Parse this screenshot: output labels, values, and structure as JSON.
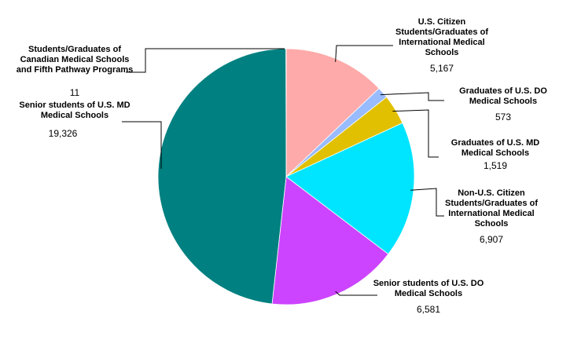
{
  "chart_data": {
    "type": "pie",
    "categories": [
      "U.S. Citizen Students/Graduates of International Medical Schools",
      "Graduates of U.S. DO Medical Schools",
      "Graduates of U.S. MD Medical Schools",
      "Non-U.S. Citizen Students/Graduates of International Medical Schools",
      "Senior students of U.S. DO Medical Schools",
      "Senior students of U.S. MD Medical Schools",
      "Students/Graduates of Canadian Medical Schools and Fifth Pathway Programs"
    ],
    "values": [
      5167,
      573,
      1519,
      6907,
      6581,
      19326,
      11
    ],
    "value_labels": [
      "5,167",
      "573",
      "1,519",
      "6,907",
      "6,581",
      "19,326",
      "11"
    ],
    "colors": [
      "#ffaaaa",
      "#99bbff",
      "#e0c000",
      "#00e5ff",
      "#cc44ff",
      "#008080",
      "#f4f4f4"
    ]
  }
}
